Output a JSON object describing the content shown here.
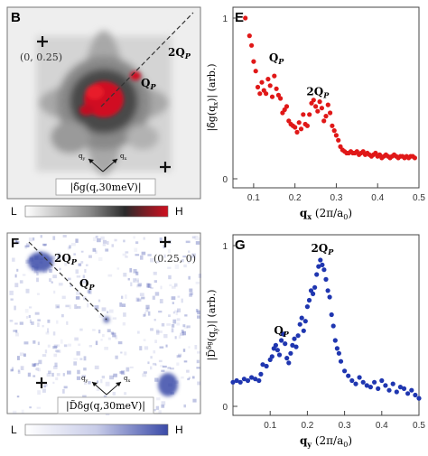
{
  "panels": {
    "B": {
      "letter": "B",
      "corner_label": "(0, 0.25)",
      "qp_label": "Q",
      "qp_sub": "P",
      "two_qp_label": "2Q",
      "two_qp_sub": "P",
      "axis_qx": "q",
      "axis_qx_sub": "x",
      "axis_qy": "q",
      "axis_qy_sub": "y",
      "caption": "|δ̃g(q,30meV)|",
      "colorbar_low": "L",
      "colorbar_high": "H",
      "colorbar_colors": [
        "#ffffff",
        "#8a8a8a",
        "#2a2a2a",
        "#d01020"
      ]
    },
    "F": {
      "letter": "F",
      "corner_label": "(0.25, 0)",
      "qp_label": "Q",
      "qp_sub": "P",
      "two_qp_label": "2Q",
      "two_qp_sub": "P",
      "axis_qx": "q",
      "axis_qx_sub": "x",
      "axis_qy": "q",
      "axis_qy_sub": "y",
      "caption": "|D̃δg(q,30meV)|",
      "colorbar_low": "L",
      "colorbar_high": "H",
      "colorbar_colors": [
        "#ffffff",
        "#c8cce8",
        "#3a4aa8"
      ]
    }
  },
  "chart_data": [
    {
      "panel": "E",
      "type": "scatter",
      "color": "#e01818",
      "ylabel": "|δ̃g(qx)| (arb.)",
      "xlabel": "qx (2π/a0)",
      "xlim": [
        0.05,
        0.5
      ],
      "ylim": [
        0,
        1.0
      ],
      "xticks": [
        0.1,
        0.2,
        0.3,
        0.4,
        0.5
      ],
      "yticks": [
        0,
        1
      ],
      "annotations": [
        {
          "text": "Q",
          "sub": "P",
          "x": 0.155,
          "y": 0.73
        },
        {
          "text": "2Q",
          "sub": "P",
          "x": 0.255,
          "y": 0.52
        }
      ],
      "x": [
        0.08,
        0.09,
        0.095,
        0.1,
        0.105,
        0.11,
        0.115,
        0.12,
        0.125,
        0.13,
        0.135,
        0.14,
        0.145,
        0.15,
        0.155,
        0.16,
        0.165,
        0.17,
        0.175,
        0.18,
        0.185,
        0.19,
        0.195,
        0.2,
        0.205,
        0.21,
        0.215,
        0.22,
        0.225,
        0.23,
        0.235,
        0.24,
        0.245,
        0.25,
        0.255,
        0.26,
        0.265,
        0.27,
        0.275,
        0.28,
        0.285,
        0.29,
        0.295,
        0.3,
        0.305,
        0.31,
        0.315,
        0.32,
        0.325,
        0.33,
        0.335,
        0.34,
        0.345,
        0.35,
        0.355,
        0.36,
        0.365,
        0.37,
        0.375,
        0.38,
        0.385,
        0.39,
        0.395,
        0.4,
        0.405,
        0.41,
        0.415,
        0.42,
        0.425,
        0.43,
        0.435,
        0.44,
        0.445,
        0.45,
        0.455,
        0.46,
        0.465,
        0.47,
        0.475,
        0.48,
        0.485,
        0.49
      ],
      "y": [
        1.0,
        0.89,
        0.83,
        0.73,
        0.67,
        0.57,
        0.53,
        0.6,
        0.55,
        0.53,
        0.62,
        0.58,
        0.51,
        0.64,
        0.56,
        0.52,
        0.5,
        0.41,
        0.43,
        0.45,
        0.36,
        0.34,
        0.33,
        0.32,
        0.29,
        0.35,
        0.31,
        0.4,
        0.34,
        0.33,
        0.4,
        0.47,
        0.49,
        0.45,
        0.42,
        0.48,
        0.44,
        0.36,
        0.39,
        0.46,
        0.41,
        0.33,
        0.3,
        0.27,
        0.24,
        0.2,
        0.18,
        0.17,
        0.16,
        0.16,
        0.17,
        0.16,
        0.16,
        0.17,
        0.15,
        0.16,
        0.17,
        0.15,
        0.16,
        0.15,
        0.14,
        0.15,
        0.16,
        0.14,
        0.15,
        0.13,
        0.14,
        0.15,
        0.14,
        0.13,
        0.14,
        0.15,
        0.14,
        0.13,
        0.14,
        0.14,
        0.13,
        0.14,
        0.13,
        0.14,
        0.14,
        0.13
      ]
    },
    {
      "panel": "G",
      "type": "scatter",
      "color": "#1f36b0",
      "ylabel": "|D̃δg(qy)| (arb.)",
      "xlabel": "qy (2π/a0)",
      "xlim": [
        0.0,
        0.5
      ],
      "ylim": [
        0,
        1.0
      ],
      "xticks": [
        0.1,
        0.2,
        0.3,
        0.4,
        0.5
      ],
      "yticks": [
        0,
        1
      ],
      "annotations": [
        {
          "text": "Q",
          "sub": "P",
          "x": 0.13,
          "y": 0.45
        },
        {
          "text": "2Q",
          "sub": "P",
          "x": 0.24,
          "y": 0.96
        }
      ],
      "x": [
        0.0,
        0.01,
        0.02,
        0.03,
        0.04,
        0.05,
        0.06,
        0.07,
        0.075,
        0.08,
        0.09,
        0.1,
        0.105,
        0.11,
        0.115,
        0.12,
        0.125,
        0.13,
        0.135,
        0.14,
        0.145,
        0.15,
        0.155,
        0.16,
        0.165,
        0.17,
        0.175,
        0.18,
        0.185,
        0.19,
        0.195,
        0.2,
        0.205,
        0.21,
        0.215,
        0.22,
        0.225,
        0.23,
        0.235,
        0.24,
        0.245,
        0.25,
        0.255,
        0.26,
        0.265,
        0.27,
        0.275,
        0.28,
        0.285,
        0.29,
        0.3,
        0.31,
        0.32,
        0.33,
        0.34,
        0.35,
        0.36,
        0.37,
        0.38,
        0.39,
        0.4,
        0.41,
        0.42,
        0.43,
        0.44,
        0.45,
        0.46,
        0.47,
        0.48,
        0.49,
        0.5
      ],
      "y": [
        0.15,
        0.16,
        0.15,
        0.17,
        0.16,
        0.18,
        0.17,
        0.16,
        0.2,
        0.26,
        0.25,
        0.29,
        0.31,
        0.36,
        0.38,
        0.35,
        0.32,
        0.41,
        0.45,
        0.39,
        0.3,
        0.27,
        0.33,
        0.38,
        0.42,
        0.37,
        0.44,
        0.51,
        0.55,
        0.47,
        0.53,
        0.62,
        0.66,
        0.72,
        0.7,
        0.74,
        0.82,
        0.87,
        0.91,
        0.88,
        0.85,
        0.79,
        0.72,
        0.68,
        0.57,
        0.5,
        0.41,
        0.36,
        0.33,
        0.28,
        0.22,
        0.19,
        0.16,
        0.14,
        0.18,
        0.15,
        0.13,
        0.12,
        0.15,
        0.11,
        0.16,
        0.13,
        0.1,
        0.14,
        0.09,
        0.12,
        0.11,
        0.08,
        0.1,
        0.07,
        0.05
      ]
    }
  ]
}
